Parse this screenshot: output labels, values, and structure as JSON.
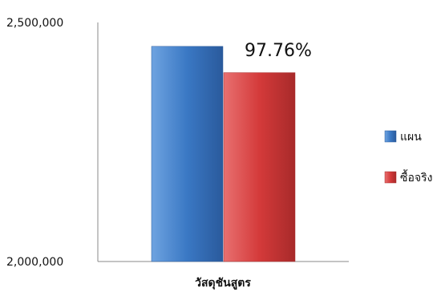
{
  "chart_data": {
    "type": "bar",
    "title": "",
    "xlabel": "",
    "ylabel": "",
    "categories": [
      "วัสดุชันสูตร"
    ],
    "series": [
      {
        "name": "แผน",
        "values": [
          2450000
        ],
        "color": "#3a78c4"
      },
      {
        "name": "ซื้อจริง",
        "values": [
          2395000
        ],
        "color": "#d43a3a"
      }
    ],
    "ylim": [
      2000000,
      2500000
    ],
    "y_ticks": [
      "2,000,000",
      "2,500,000"
    ],
    "y_tick_values": [
      2000000,
      2500000
    ],
    "annotation": "97.76%",
    "grid": false,
    "legend_position": "right"
  }
}
